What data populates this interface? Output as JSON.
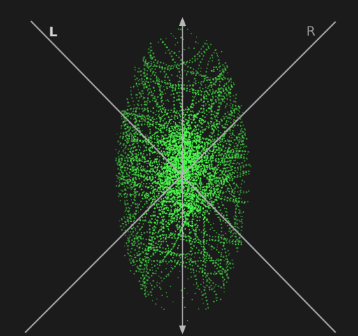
{
  "scope": {
    "left_channel_label": "L",
    "right_channel_label": "R",
    "background_color": "#1b1b1b",
    "trace_color": "#4cff4c",
    "axis_color": "#b8b8b8"
  }
}
